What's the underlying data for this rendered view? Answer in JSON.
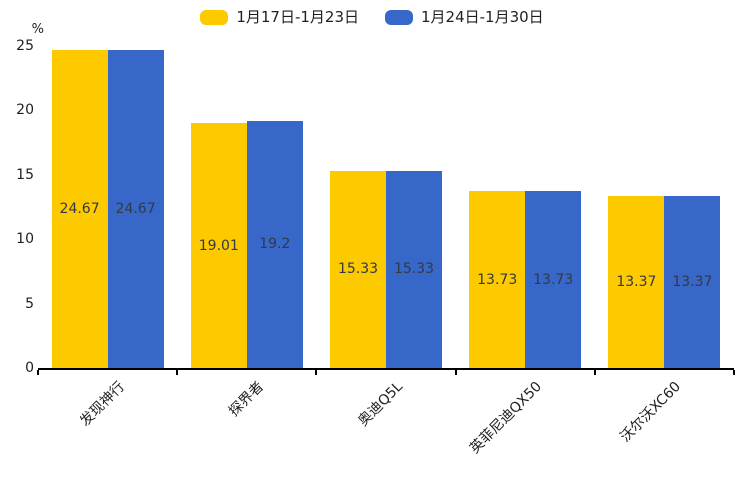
{
  "chart_data": {
    "type": "bar",
    "categories": [
      "发现神行",
      "探界者",
      "奥迪Q5L",
      "英菲尼迪QX50",
      "沃尔沃XC60"
    ],
    "series": [
      {
        "name": "1月17日-1月23日",
        "color": "#fdca00",
        "values": [
          24.67,
          19.01,
          15.33,
          13.73,
          13.37
        ],
        "value_labels": [
          "24.67",
          "19.01",
          "15.33",
          "13.73",
          "13.37"
        ]
      },
      {
        "name": "1月24日-1月30日",
        "color": "#3667c9",
        "values": [
          24.67,
          19.2,
          15.33,
          13.73,
          13.37
        ],
        "value_labels": [
          "24.67",
          "19.2",
          "15.33",
          "13.73",
          "13.37"
        ]
      }
    ],
    "title": "",
    "xlabel": "",
    "ylabel": "%",
    "ylim": [
      0,
      25
    ],
    "yticks": [
      0,
      5,
      10,
      15,
      20,
      25
    ],
    "grid": false,
    "legend_position": "top",
    "value_label_position": "inside-center",
    "axis_color": "#000000",
    "value_label_color": "#333a41"
  }
}
